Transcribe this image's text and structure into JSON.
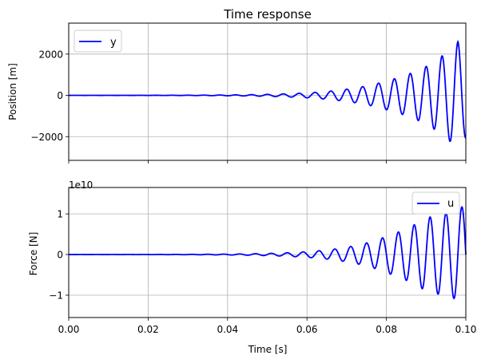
{
  "chart_data": [
    {
      "type": "line",
      "title": "Time response",
      "ylabel": "Position [m]",
      "xlim": [
        0.0,
        0.1
      ],
      "ylim": [
        -3150,
        3500
      ],
      "yticks": [
        -2000,
        0,
        2000
      ],
      "ytick_labels": [
        "−2000",
        "0",
        "2000"
      ],
      "grid": true,
      "legend_loc": "upper left",
      "series": [
        {
          "name": "y",
          "color": "#0000ff",
          "signal": {
            "kind": "growing-oscillation",
            "period": 0.004,
            "peaks": [
              [
                0.06,
                120
              ],
              [
                0.07,
                300
              ],
              [
                0.08,
                700
              ],
              [
                0.09,
                1400
              ],
              [
                0.098,
                2600
              ],
              [
                0.1,
                -2050
              ]
            ]
          }
        }
      ]
    },
    {
      "type": "line",
      "xlabel": "Time [s]",
      "ylabel": "Force [N]",
      "offset_text": "1e10",
      "xlim": [
        0.0,
        0.1
      ],
      "ylim": [
        -1.55,
        1.65
      ],
      "yticks": [
        -1,
        0,
        1
      ],
      "ytick_labels": [
        "−1",
        "0",
        "1"
      ],
      "xticks": [
        0.0,
        0.02,
        0.04,
        0.06,
        0.08,
        0.1
      ],
      "xtick_labels": [
        "0.00",
        "0.02",
        "0.04",
        "0.06",
        "0.08",
        "0.10"
      ],
      "grid": true,
      "legend_loc": "upper right",
      "series": [
        {
          "name": "u",
          "color": "#0000ff",
          "signal": {
            "kind": "growing-oscillation",
            "period": 0.004,
            "peaks": [
              [
                0.06,
                0.07
              ],
              [
                0.07,
                0.18
              ],
              [
                0.08,
                0.45
              ],
              [
                0.09,
                0.9
              ],
              [
                0.097,
                -1.08
              ],
              [
                0.1,
                1.22
              ]
            ]
          }
        }
      ]
    }
  ]
}
